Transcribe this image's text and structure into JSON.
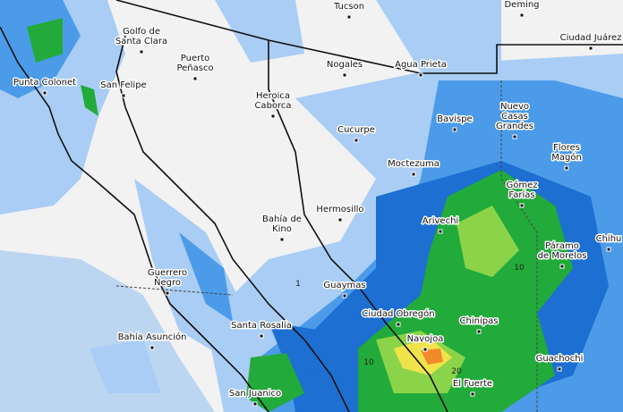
{
  "map": {
    "places": [
      [
        "Tucson"
      ],
      [
        "Deming"
      ],
      [
        "Ciudad Juárez"
      ],
      [
        "Golfo de",
        "Santa Clara"
      ],
      [
        "Puerto",
        "Peñasco"
      ],
      [
        "Punta Colonet"
      ],
      [
        "San Felipe"
      ],
      [
        "Nogales"
      ],
      [
        "Agua Prieta"
      ],
      [
        "Heroica",
        "Caborca"
      ],
      [
        "Bavispe"
      ],
      [
        "Nuevo",
        "Casas",
        "Grandes"
      ],
      [
        "Cucurpe"
      ],
      [
        "Flores",
        "Magón"
      ],
      [
        "Moctezuma"
      ],
      [
        "Gómez",
        "Farías"
      ],
      [
        "Hermosillo"
      ],
      [
        "Bahía de",
        "Kino"
      ],
      [
        "Arivechi"
      ],
      [
        "Páramo",
        "de Morelos"
      ],
      [
        "Chihu"
      ],
      [
        "Guerrero",
        "Negro"
      ],
      [
        "Guaymas"
      ],
      [
        "Ciudad Obregón"
      ],
      [
        "Chinipas"
      ],
      [
        "Santa Rosalía"
      ],
      [
        "Bahía Asunción"
      ],
      [
        "Navojoa"
      ],
      [
        "Guachochi"
      ],
      [
        "El Fuerte"
      ],
      [
        "San Juanico"
      ]
    ],
    "contour_labels": [
      "10",
      "10",
      "20",
      "1"
    ]
  }
}
